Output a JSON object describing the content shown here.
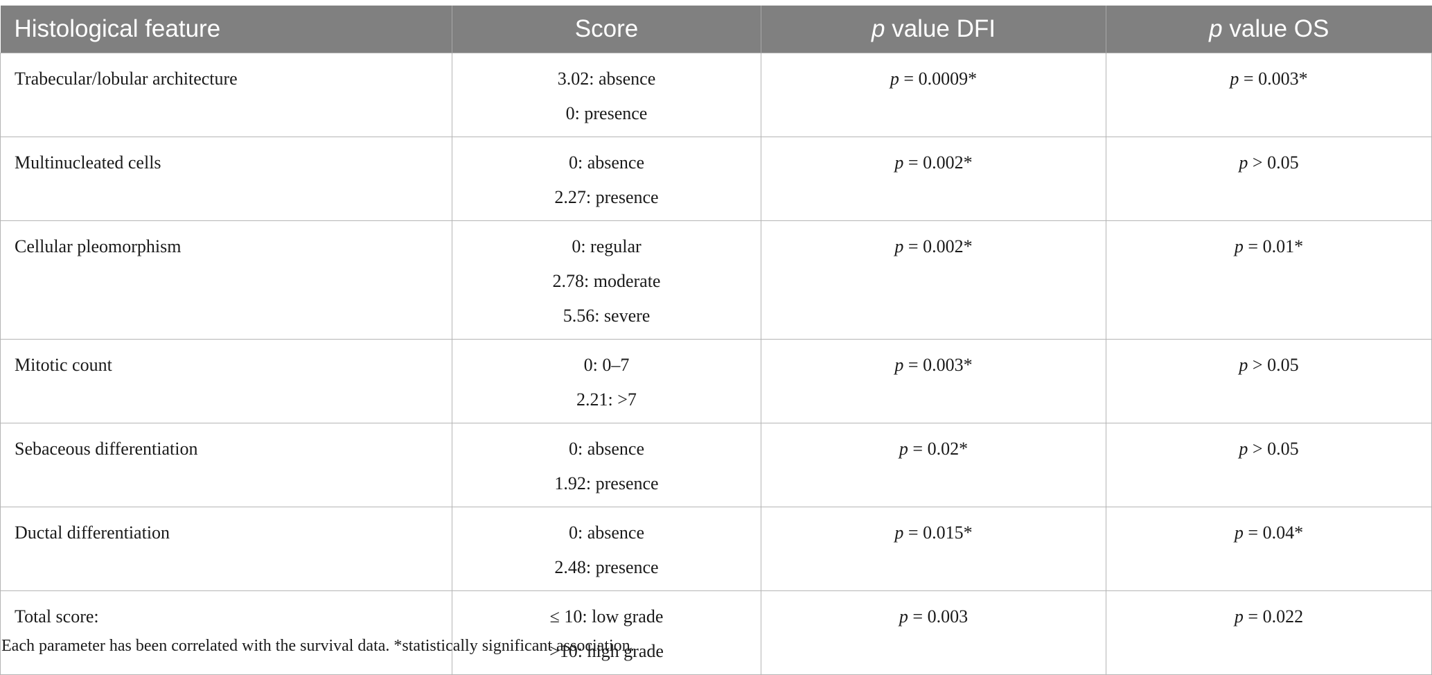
{
  "table": {
    "headers": {
      "feature": "Histological feature",
      "score": "Score",
      "dfi": "value DFI",
      "os": "value OS",
      "p_symbol": "p"
    },
    "rows": [
      {
        "feature": "Trabecular/lobular architecture",
        "score_lines": [
          "3.02: absence",
          "0: presence"
        ],
        "dfi": " = 0.0009*",
        "os": " = 0.003*"
      },
      {
        "feature": "Multinucleated cells",
        "score_lines": [
          "0: absence",
          "2.27: presence"
        ],
        "dfi": " = 0.002*",
        "os": " > 0.05"
      },
      {
        "feature": "Cellular pleomorphism",
        "score_lines": [
          "0: regular",
          "2.78: moderate",
          "5.56: severe"
        ],
        "dfi": " = 0.002*",
        "os": " = 0.01*"
      },
      {
        "feature": "Mitotic count",
        "score_lines": [
          "0: 0–7",
          "2.21: >7"
        ],
        "dfi": " = 0.003*",
        "os": " > 0.05"
      },
      {
        "feature": "Sebaceous differentiation",
        "score_lines": [
          "0: absence",
          "1.92: presence"
        ],
        "dfi": " = 0.02*",
        "os": " > 0.05"
      },
      {
        "feature": "Ductal differentiation",
        "score_lines": [
          "0: absence",
          "2.48: presence"
        ],
        "dfi": " = 0.015*",
        "os": " = 0.04*"
      },
      {
        "feature": "Total score:",
        "score_lines": [
          "≤ 10: low grade",
          ">10: high grade"
        ],
        "dfi": " = 0.003",
        "os": " = 0.022"
      }
    ]
  },
  "footnote": "Each parameter has been correlated with the survival data. *statistically significant association."
}
